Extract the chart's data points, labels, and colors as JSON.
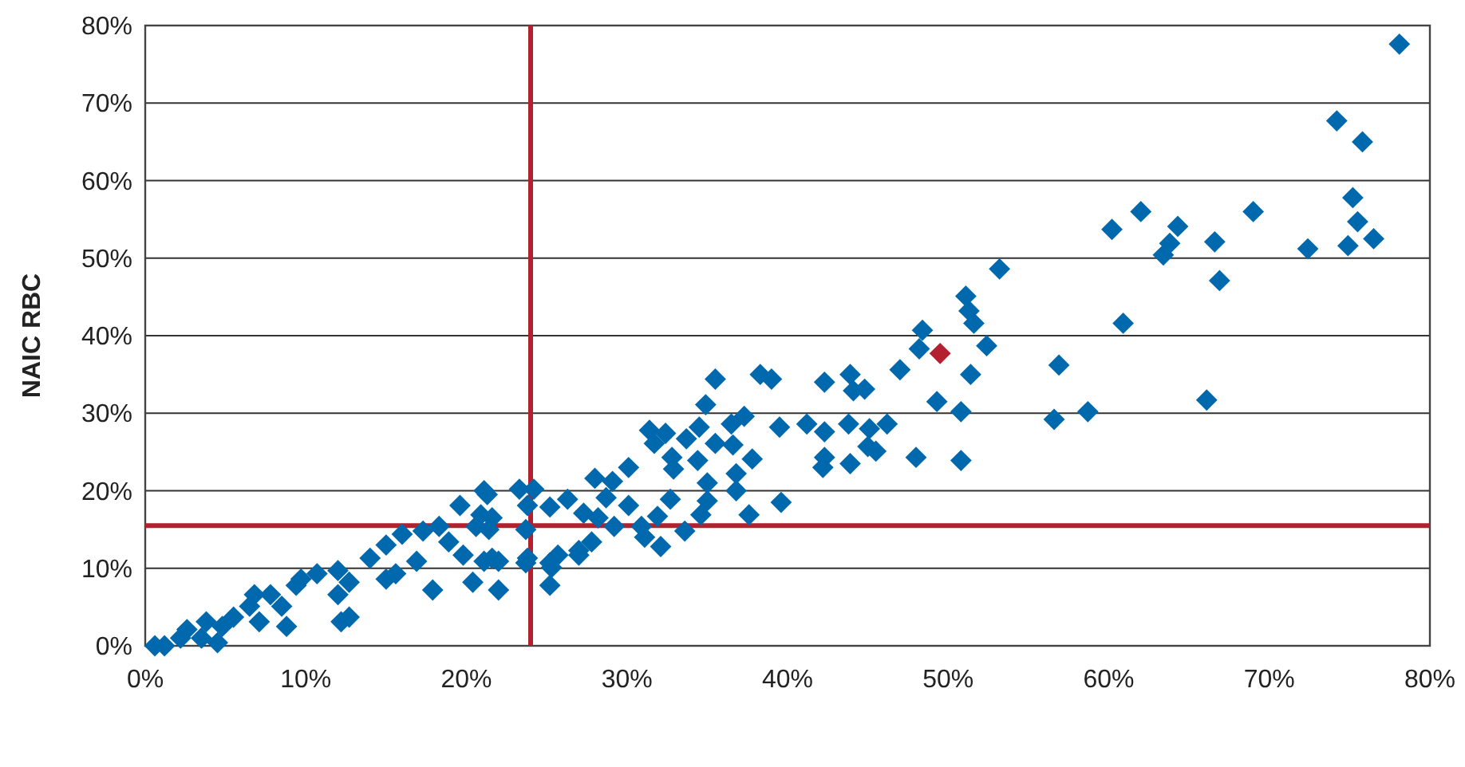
{
  "chart_data": {
    "type": "scatter",
    "ylabel": "NAIC RBC",
    "marker": "diamond",
    "grid": "y",
    "xlim": [
      0,
      80
    ],
    "ylim": [
      0,
      80
    ],
    "xticks": [
      {
        "value": 0,
        "label": "0%"
      },
      {
        "value": 10,
        "label": "10%"
      },
      {
        "value": 20,
        "label": "20%"
      },
      {
        "value": 30,
        "label": "30%"
      },
      {
        "value": 40,
        "label": "40%"
      },
      {
        "value": 50,
        "label": "50%"
      },
      {
        "value": 60,
        "label": "60%"
      },
      {
        "value": 70,
        "label": "70%"
      },
      {
        "value": 80,
        "label": "80%"
      }
    ],
    "yticks": [
      {
        "value": 0,
        "label": "0%"
      },
      {
        "value": 10,
        "label": "10%"
      },
      {
        "value": 20,
        "label": "20%"
      },
      {
        "value": 30,
        "label": "30%"
      },
      {
        "value": 40,
        "label": "40%"
      },
      {
        "value": 50,
        "label": "50%"
      },
      {
        "value": 60,
        "label": "60%"
      },
      {
        "value": 70,
        "label": "70%"
      },
      {
        "value": 80,
        "label": "80%"
      }
    ],
    "ref_lines": [
      {
        "axis": "x",
        "value": 24,
        "color": "#b3202f"
      },
      {
        "axis": "y",
        "value": 15.5,
        "color": "#b3202f"
      }
    ],
    "series": [
      {
        "color": "#0068ad",
        "x": [
          78.1,
          74.2,
          75.8,
          75.2,
          75.5,
          74.9,
          76.5,
          72.4,
          69.0,
          66.6,
          66.9,
          66.1,
          64.3,
          63.8,
          63.4,
          62.0,
          60.2,
          60.9,
          56.9,
          58.7,
          56.6,
          53.2,
          51.1,
          51.3,
          51.6,
          52.4,
          48.4,
          48.2,
          47.0,
          51.4,
          49.3,
          50.8,
          48.0,
          50.8,
          42.3,
          43.9,
          44.1,
          44.8,
          39.0,
          38.3,
          39.5,
          41.2,
          42.3,
          43.8,
          45.1,
          46.2,
          45.0,
          45.5,
          42.3,
          42.2,
          43.9,
          39.6,
          35.5,
          34.9,
          34.5,
          36.5,
          37.3,
          31.4,
          32.4,
          31.7,
          33.7,
          32.8,
          32.9,
          34.4,
          35.5,
          36.6,
          37.8,
          30.1,
          29.1,
          28.0,
          28.7,
          30.1,
          32.7,
          35.0,
          35.0,
          36.8,
          36.8,
          37.6,
          34.6,
          33.6,
          31.9,
          32.1,
          30.9,
          31.1,
          27.3,
          28.2,
          29.2,
          27.8,
          27.0,
          25.7,
          25.3,
          26.3,
          25.2,
          24.2,
          23.3,
          23.8,
          23.7,
          21.1,
          20.9,
          21.4,
          22.0,
          23.7,
          21.1,
          21.3,
          19.6,
          18.3,
          17.3,
          16.0,
          15.0,
          14.0,
          16.9,
          18.9,
          20.6,
          21.6,
          19.8,
          21.6,
          20.4,
          22.0,
          17.9,
          15.0,
          15.6,
          12.7,
          12.0,
          10.7,
          9.7,
          12.0,
          12.7,
          12.2,
          8.8,
          7.8,
          6.5,
          5.5,
          3.8,
          3.5,
          2.2,
          1.2,
          0.6,
          23.8,
          25.2,
          25.2,
          27.0,
          9.4,
          8.5,
          7.1,
          4.8,
          2.6,
          6.8,
          4.5
        ],
        "values": [
          77.6,
          67.7,
          65.0,
          57.8,
          54.7,
          51.6,
          52.5,
          51.2,
          56.0,
          52.1,
          47.1,
          31.7,
          54.1,
          51.9,
          50.4,
          56.0,
          53.7,
          41.6,
          36.2,
          30.2,
          29.2,
          48.6,
          45.1,
          43.2,
          41.6,
          38.7,
          40.7,
          38.3,
          35.6,
          35.0,
          31.5,
          30.2,
          24.3,
          23.9,
          34.0,
          35.0,
          32.9,
          33.1,
          34.4,
          35.0,
          28.2,
          28.6,
          27.6,
          28.6,
          28.0,
          28.6,
          25.7,
          25.1,
          24.3,
          23.0,
          23.5,
          18.5,
          34.4,
          31.1,
          28.2,
          28.6,
          29.6,
          27.8,
          27.4,
          26.1,
          26.7,
          24.3,
          22.8,
          23.9,
          26.1,
          25.9,
          24.1,
          23.0,
          21.2,
          21.6,
          19.1,
          18.1,
          18.9,
          21.0,
          18.7,
          22.2,
          20.0,
          16.9,
          16.9,
          14.8,
          16.7,
          12.8,
          15.4,
          14.0,
          17.1,
          16.5,
          15.4,
          13.4,
          11.7,
          11.7,
          10.1,
          18.9,
          17.9,
          20.2,
          20.2,
          18.1,
          15.0,
          20.0,
          16.9,
          15.0,
          10.9,
          10.7,
          10.9,
          19.5,
          18.1,
          15.4,
          14.8,
          14.4,
          13.0,
          11.3,
          10.9,
          13.4,
          15.4,
          16.5,
          11.7,
          11.3,
          8.2,
          7.2,
          7.2,
          8.6,
          9.3,
          8.2,
          9.7,
          9.3,
          8.6,
          6.6,
          3.7,
          3.1,
          2.5,
          6.6,
          5.1,
          3.7,
          3.1,
          1.0,
          1.0,
          0.0,
          0.0,
          11.3,
          10.7,
          7.8,
          12.3,
          7.8,
          5.1,
          3.1,
          2.5,
          2.1,
          6.6,
          0.4
        ]
      },
      {
        "color": "#b3202f",
        "x": [
          49.5
        ],
        "values": [
          37.7
        ]
      }
    ]
  }
}
